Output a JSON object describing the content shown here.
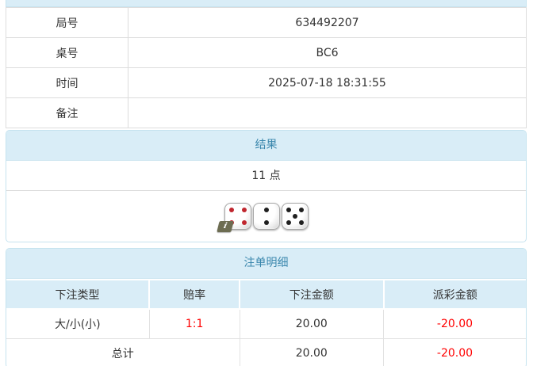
{
  "colors": {
    "header_bg": "#d9edf7",
    "header_text": "#3a87ad",
    "negative_text": "#ff0000",
    "pip_red": "#c0262e",
    "pip_black": "#1f1f1f"
  },
  "game_info": {
    "rows": [
      {
        "label": "局号",
        "value": "634492207"
      },
      {
        "label": "桌号",
        "value": "BC6"
      },
      {
        "label": "时间",
        "value": "2025-07-18 18:31:55"
      },
      {
        "label": "备注",
        "value": ""
      }
    ]
  },
  "result_panel": {
    "title": "结果",
    "points": "11 点",
    "dice": [
      {
        "value": 4,
        "color": "#c0262e"
      },
      {
        "value": 2,
        "color": "#1f1f1f"
      },
      {
        "value": 5,
        "color": "#1f1f1f"
      }
    ],
    "info_badge": "i"
  },
  "bet_panel": {
    "title": "注单明细",
    "columns": [
      "下注类型",
      "赔率",
      "下注金额",
      "派彩金额"
    ],
    "rows": [
      {
        "type": "大/小(小)",
        "odds": "1:1",
        "bet": "20.00",
        "payout": "-20.00"
      }
    ],
    "total": {
      "label": "总计",
      "bet": "20.00",
      "payout": "-20.00"
    }
  }
}
